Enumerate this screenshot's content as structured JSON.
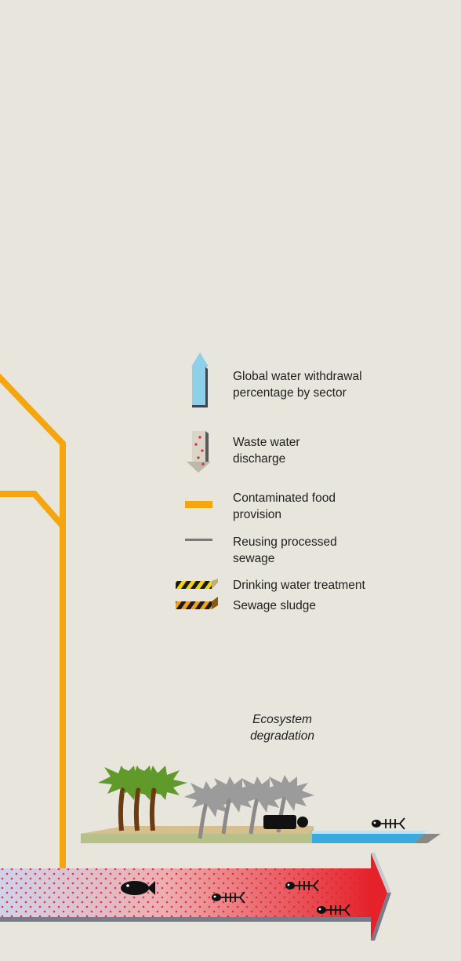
{
  "legend": {
    "withdrawal": "Global water withdrawal percentage by sector",
    "waste_water": "Waste water discharge",
    "contaminated_food": "Contaminated food provision",
    "reusing_sewage": "Reusing processed sewage",
    "drinking_water": "Drinking water treatment",
    "sewage_sludge": "Sewage sludge"
  },
  "scene": {
    "ecosystem_label": "Ecosystem degradation"
  },
  "colors": {
    "background": "#e8e6dc",
    "contaminated_food": "#f5a60f",
    "withdrawal_arrow": "#8ed0ea",
    "water": "#3aa9dc",
    "polluted_flow": "#e5222a",
    "ground": "#b8c08a",
    "sand": "#d7be8e"
  }
}
